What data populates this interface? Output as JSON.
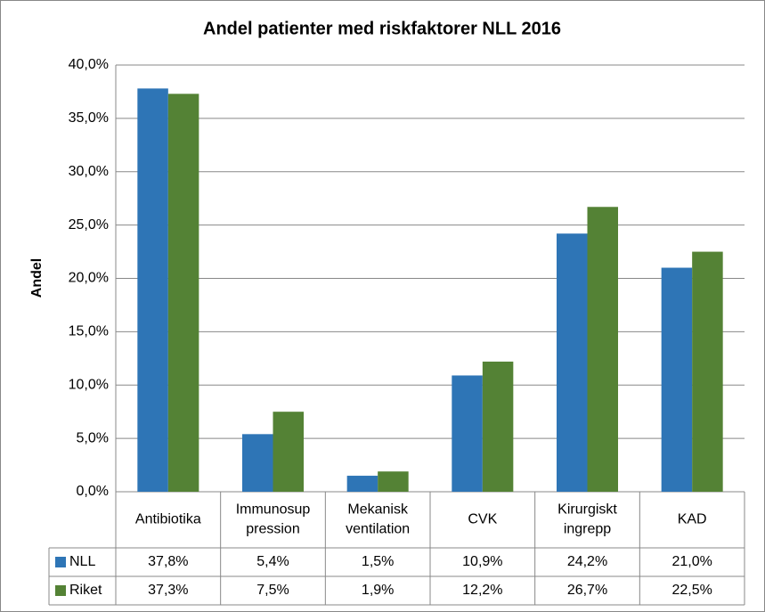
{
  "chart_data": {
    "type": "bar",
    "title": "Andel patienter med riskfaktorer NLL 2016",
    "y_label": "Andel",
    "categories": [
      "Antibiotika",
      "Immunosup\npression",
      "Mekanisk\nventilation",
      "CVK",
      "Kirurgiskt\ningrepp",
      "KAD"
    ],
    "series": [
      {
        "name": "NLL",
        "color": "#2e75b6",
        "values": [
          37.8,
          5.4,
          1.5,
          10.9,
          24.2,
          21.0
        ],
        "value_labels": [
          "37,8%",
          "5,4%",
          "1,5%",
          "10,9%",
          "24,2%",
          "21,0%"
        ]
      },
      {
        "name": "Riket",
        "color": "#548235",
        "values": [
          37.3,
          7.5,
          1.9,
          12.2,
          26.7,
          22.5
        ],
        "value_labels": [
          "37,3%",
          "7,5%",
          "1,9%",
          "12,2%",
          "26,7%",
          "22,5%"
        ]
      }
    ],
    "ylim": [
      0,
      40
    ],
    "yticks": [
      {
        "value": 0,
        "label": "0,0%"
      },
      {
        "value": 5,
        "label": "5,0%"
      },
      {
        "value": 10,
        "label": "10,0%"
      },
      {
        "value": 15,
        "label": "15,0%"
      },
      {
        "value": 20,
        "label": "20,0%"
      },
      {
        "value": 25,
        "label": "25,0%"
      },
      {
        "value": 30,
        "label": "30,0%"
      },
      {
        "value": 35,
        "label": "35,0%"
      },
      {
        "value": 40,
        "label": "40,0%"
      }
    ],
    "grid": true
  }
}
